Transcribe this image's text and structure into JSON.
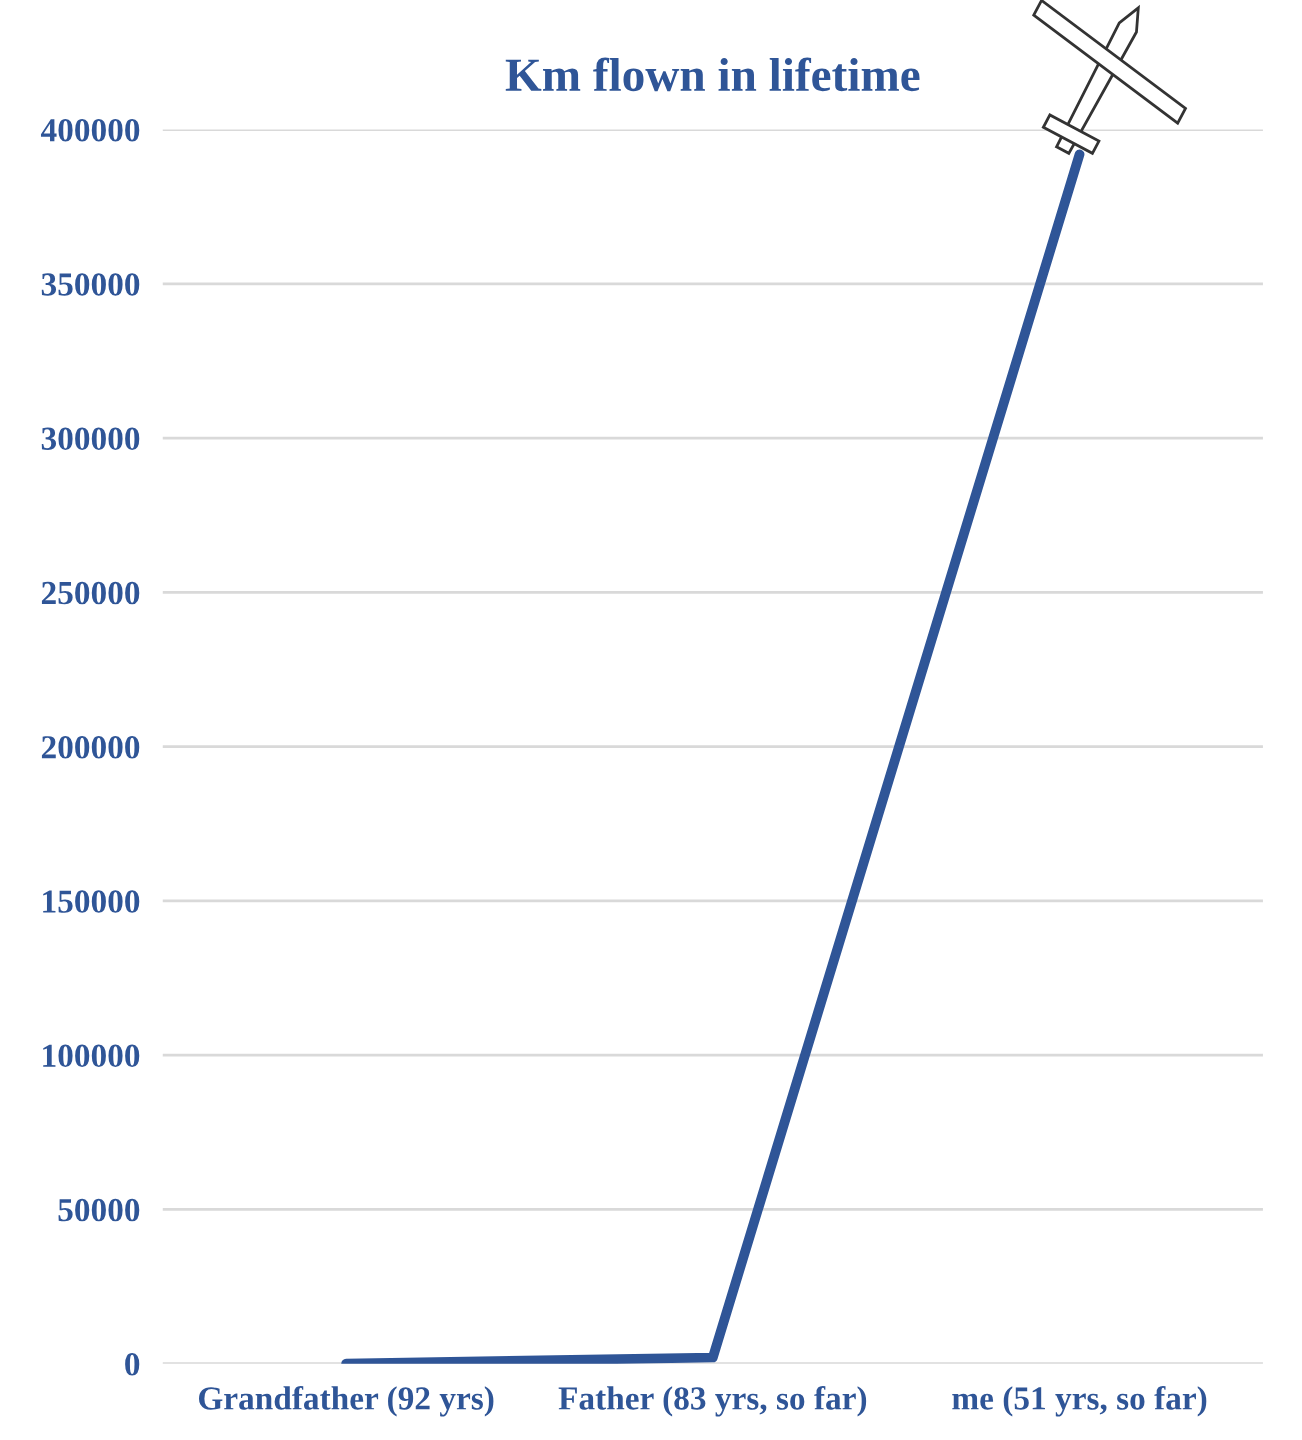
{
  "chart_data": {
    "type": "line",
    "title": "Km flown in lifetime",
    "categories": [
      "Grandfather (92 yrs)",
      "Father (83 yrs, so far)",
      "me (51 yrs, so far)"
    ],
    "series": [
      {
        "color": "#2f5597",
        "values": [
          0,
          2000,
          392000
        ]
      }
    ],
    "ylim": [
      0,
      400000
    ],
    "yticks": [
      0,
      50000,
      100000,
      150000,
      200000,
      250000,
      300000,
      350000,
      400000
    ],
    "grid": "y",
    "legend": false,
    "marker": "none",
    "line_style": "solid"
  }
}
